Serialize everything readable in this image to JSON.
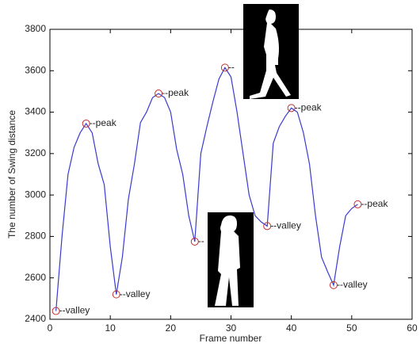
{
  "chart_data": {
    "type": "line",
    "xlabel": "Frame number",
    "ylabel": "The number of Swing distance",
    "x": [
      1,
      2,
      3,
      4,
      5,
      6,
      7,
      8,
      9,
      10,
      11,
      12,
      13,
      14,
      15,
      16,
      17,
      18,
      19,
      20,
      21,
      22,
      23,
      24,
      25,
      26,
      27,
      28,
      29,
      30,
      31,
      32,
      33,
      34,
      35,
      36,
      37,
      38,
      39,
      40,
      41,
      42,
      43,
      44,
      45,
      46,
      47,
      48,
      49,
      50,
      51
    ],
    "series": [
      {
        "color": "#3a3ad0",
        "values": [
          2440,
          2800,
          3100,
          3230,
          3300,
          3345,
          3300,
          3150,
          3050,
          2750,
          2520,
          2700,
          2980,
          3150,
          3350,
          3400,
          3470,
          3490,
          3470,
          3400,
          3220,
          3100,
          2900,
          2775,
          3200,
          3330,
          3450,
          3560,
          3615,
          3570,
          3400,
          3200,
          3000,
          2900,
          2870,
          2850,
          3250,
          3330,
          3380,
          3420,
          3400,
          3300,
          3150,
          2900,
          2700,
          2630,
          2565,
          2750,
          2900,
          2935,
          2955
        ]
      }
    ],
    "annotations": [
      {
        "x": 1,
        "y": 2440,
        "text": "--valley"
      },
      {
        "x": 6,
        "y": 3345,
        "text": "--peak"
      },
      {
        "x": 11,
        "y": 2520,
        "text": "--valley"
      },
      {
        "x": 18,
        "y": 3490,
        "text": "--peak"
      },
      {
        "x": 24,
        "y": 2775,
        "text": "--"
      },
      {
        "x": 29,
        "y": 3615,
        "text": "--"
      },
      {
        "x": 36,
        "y": 2850,
        "text": "--valley"
      },
      {
        "x": 40,
        "y": 3420,
        "text": "--peak"
      },
      {
        "x": 47,
        "y": 2565,
        "text": "--valley"
      },
      {
        "x": 51,
        "y": 2955,
        "text": "--peak"
      }
    ],
    "marker_color": "#c03030",
    "xlim": [
      0,
      60
    ],
    "xticks": [
      0,
      10,
      20,
      30,
      40,
      50,
      60
    ],
    "ylim": [
      2400,
      3800
    ],
    "yticks": [
      2400,
      2600,
      2800,
      3000,
      3200,
      3400,
      3600,
      3800
    ]
  }
}
